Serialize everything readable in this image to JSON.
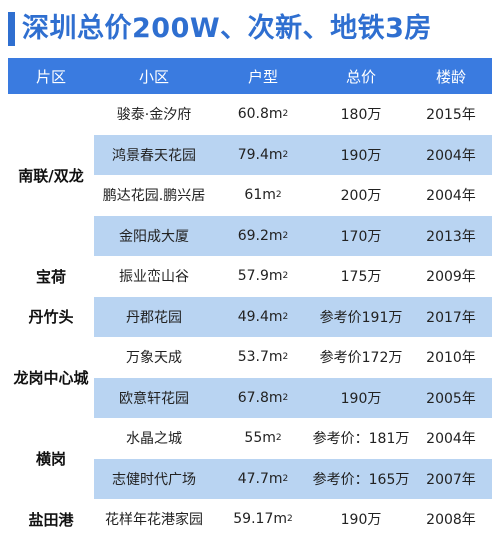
{
  "title": "深圳总价200W、次新、地铁3房",
  "headers": [
    "片区",
    "小区",
    "户型",
    "总价",
    "楼龄"
  ],
  "regions": [
    {
      "name": "南联/双龙",
      "rows": 4
    },
    {
      "name": "宝荷",
      "rows": 1
    },
    {
      "name": "丹竹头",
      "rows": 1
    },
    {
      "name": "龙岗中心城",
      "rows": 2
    },
    {
      "name": "横岗",
      "rows": 2
    },
    {
      "name": "盐田港",
      "rows": 1
    }
  ],
  "rows": [
    {
      "community": "骏泰·金汐府",
      "size": "60.8m²",
      "price": "180万",
      "year": "2015年"
    },
    {
      "community": "鸿景春天花园",
      "size": "79.4m²",
      "price": "190万",
      "year": "2004年"
    },
    {
      "community": "鹏达花园.鹏兴居",
      "size": "61m²",
      "price": "200万",
      "year": "2004年"
    },
    {
      "community": "金阳成大厦",
      "size": "69.2m²",
      "price": "170万",
      "year": "2013年"
    },
    {
      "community": "振业峦山谷",
      "size": "57.9m²",
      "price": "175万",
      "year": "2009年"
    },
    {
      "community": "丹郡花园",
      "size": "49.4m²",
      "price": "参考价191万",
      "year": "2017年"
    },
    {
      "community": "万象天成",
      "size": "53.7m²",
      "price": "参考价172万",
      "year": "2010年"
    },
    {
      "community": "欧意轩花园",
      "size": "67.8m²",
      "price": "190万",
      "year": "2005年"
    },
    {
      "community": "水晶之城",
      "size": "55m²",
      "price": "参考价：181万",
      "year": "2004年"
    },
    {
      "community": "志健时代广场",
      "size": "47.7m²",
      "price": "参考价：165万",
      "year": "2007年"
    },
    {
      "community": "花样年花港家园",
      "size": "59.17m²",
      "price": "190万",
      "year": "2008年"
    }
  ]
}
